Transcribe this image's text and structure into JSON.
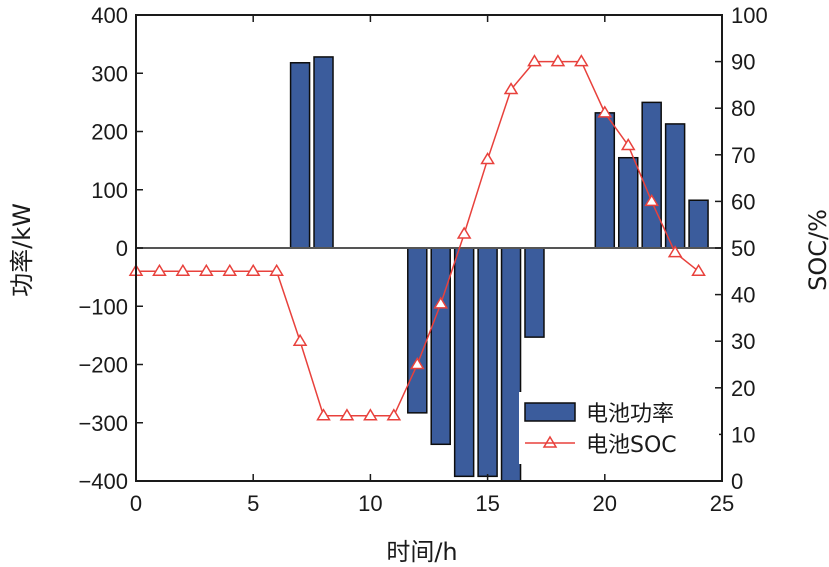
{
  "chart_data": {
    "type": "bar",
    "xlabel": "时间/h",
    "ylabel_left": "功率/kW",
    "ylabel_right": "SOC/%",
    "xlim": [
      0,
      25
    ],
    "ylim_left": [
      -400,
      400
    ],
    "ylim_right": [
      0,
      100
    ],
    "x_ticks": [
      "0",
      "5",
      "10",
      "15",
      "20",
      "25"
    ],
    "y_ticks_left": [
      "400",
      "300",
      "200",
      "100",
      "0",
      "−100",
      "−200",
      "−300",
      "−400"
    ],
    "y_ticks_right": [
      "100",
      "90",
      "80",
      "70",
      "60",
      "50",
      "40",
      "30",
      "20",
      "10",
      "0"
    ],
    "grid": false,
    "legend_position": "bottom-right",
    "legend": [
      "电池功率",
      "电池SOC"
    ],
    "series": [
      {
        "name": "电池功率",
        "type": "bar",
        "axis": "left",
        "color": "#3b5c9c",
        "x": [
          7,
          8,
          12,
          13,
          14,
          15,
          16,
          17,
          20,
          21,
          22,
          23,
          24
        ],
        "values": [
          318,
          328,
          -283,
          -337,
          -392,
          -392,
          -400,
          -153,
          232,
          155,
          250,
          213,
          82
        ]
      },
      {
        "name": "电池SOC",
        "type": "line",
        "axis": "right",
        "color": "#e8413c",
        "marker": "triangle",
        "x": [
          0,
          1,
          2,
          3,
          4,
          5,
          6,
          7,
          8,
          9,
          10,
          11,
          12,
          13,
          14,
          15,
          16,
          17,
          18,
          19,
          20,
          21,
          22,
          23,
          24
        ],
        "values": [
          45,
          45,
          45,
          45,
          45,
          45,
          45,
          30,
          14,
          14,
          14,
          14,
          25,
          38,
          53,
          69,
          84,
          90,
          90,
          90,
          79,
          72,
          60,
          49,
          45
        ]
      }
    ]
  }
}
